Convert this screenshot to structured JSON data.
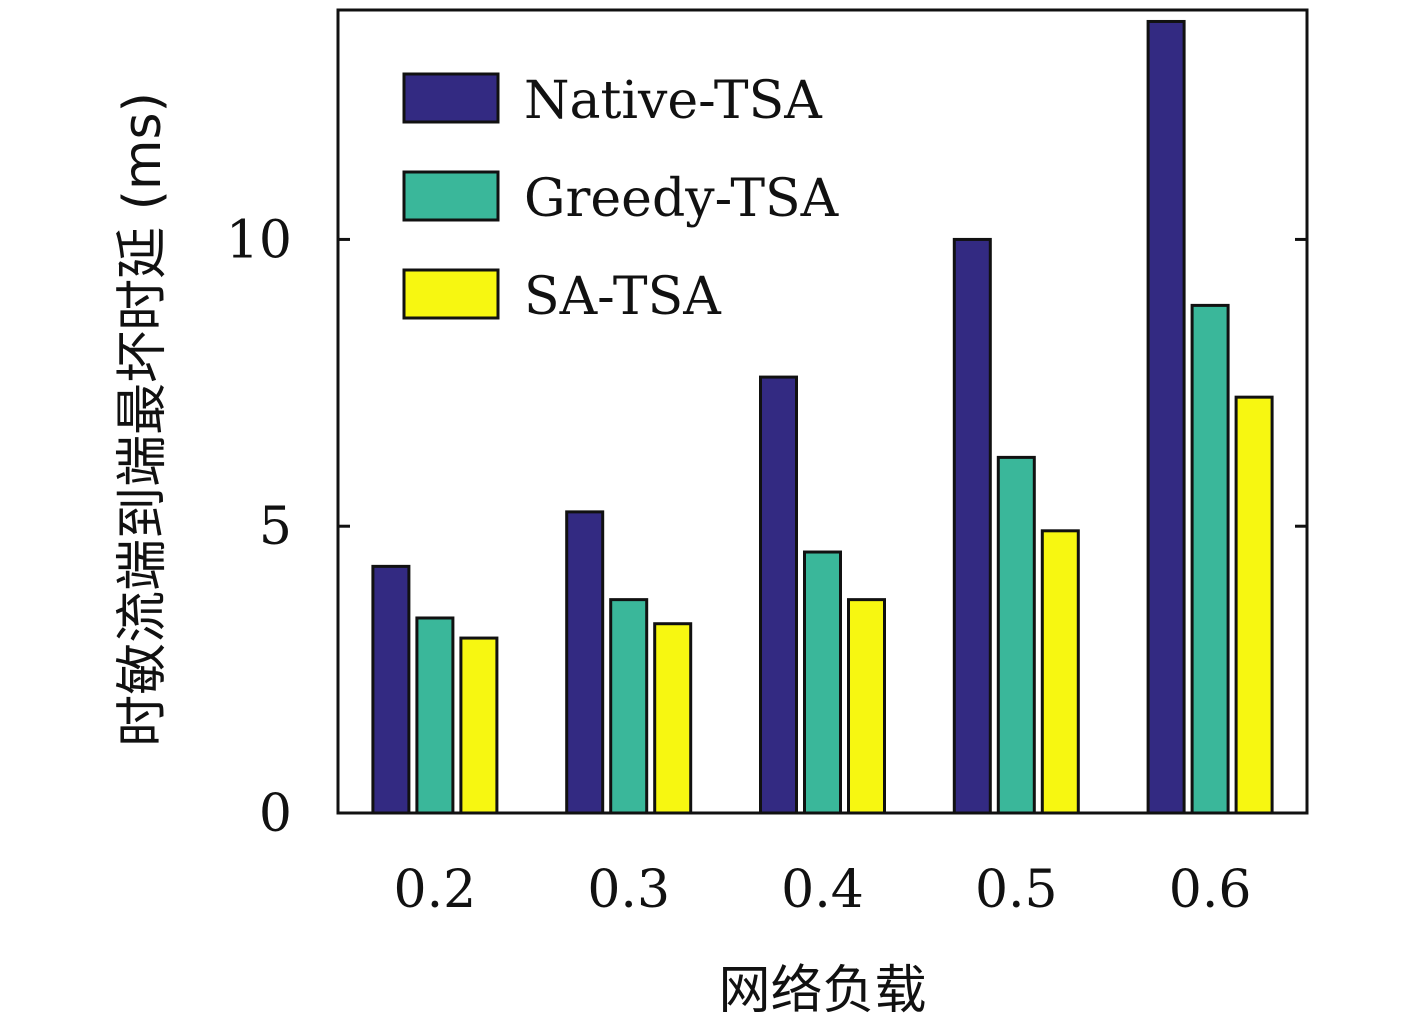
{
  "chart_data": {
    "type": "bar",
    "title": "",
    "xlabel": "网络负载",
    "ylabel": "时敏流端到端最坏时延 (ms)",
    "categories": [
      "0.2",
      "0.3",
      "0.4",
      "0.5",
      "0.6"
    ],
    "yticks": [
      "0",
      "5",
      "10"
    ],
    "ylim": [
      0,
      14
    ],
    "legend_position": "top-left",
    "grid": false,
    "series": [
      {
        "name": "Native-TSA",
        "color": "#332a82",
        "values": [
          4.3,
          5.25,
          7.6,
          10.0,
          13.8
        ]
      },
      {
        "name": "Greedy-TSA",
        "color": "#3ab79a",
        "values": [
          3.4,
          3.72,
          4.55,
          6.2,
          8.85
        ]
      },
      {
        "name": "SA-TSA",
        "color": "#f7f711",
        "values": [
          3.05,
          3.3,
          3.72,
          4.92,
          7.25
        ]
      }
    ]
  }
}
